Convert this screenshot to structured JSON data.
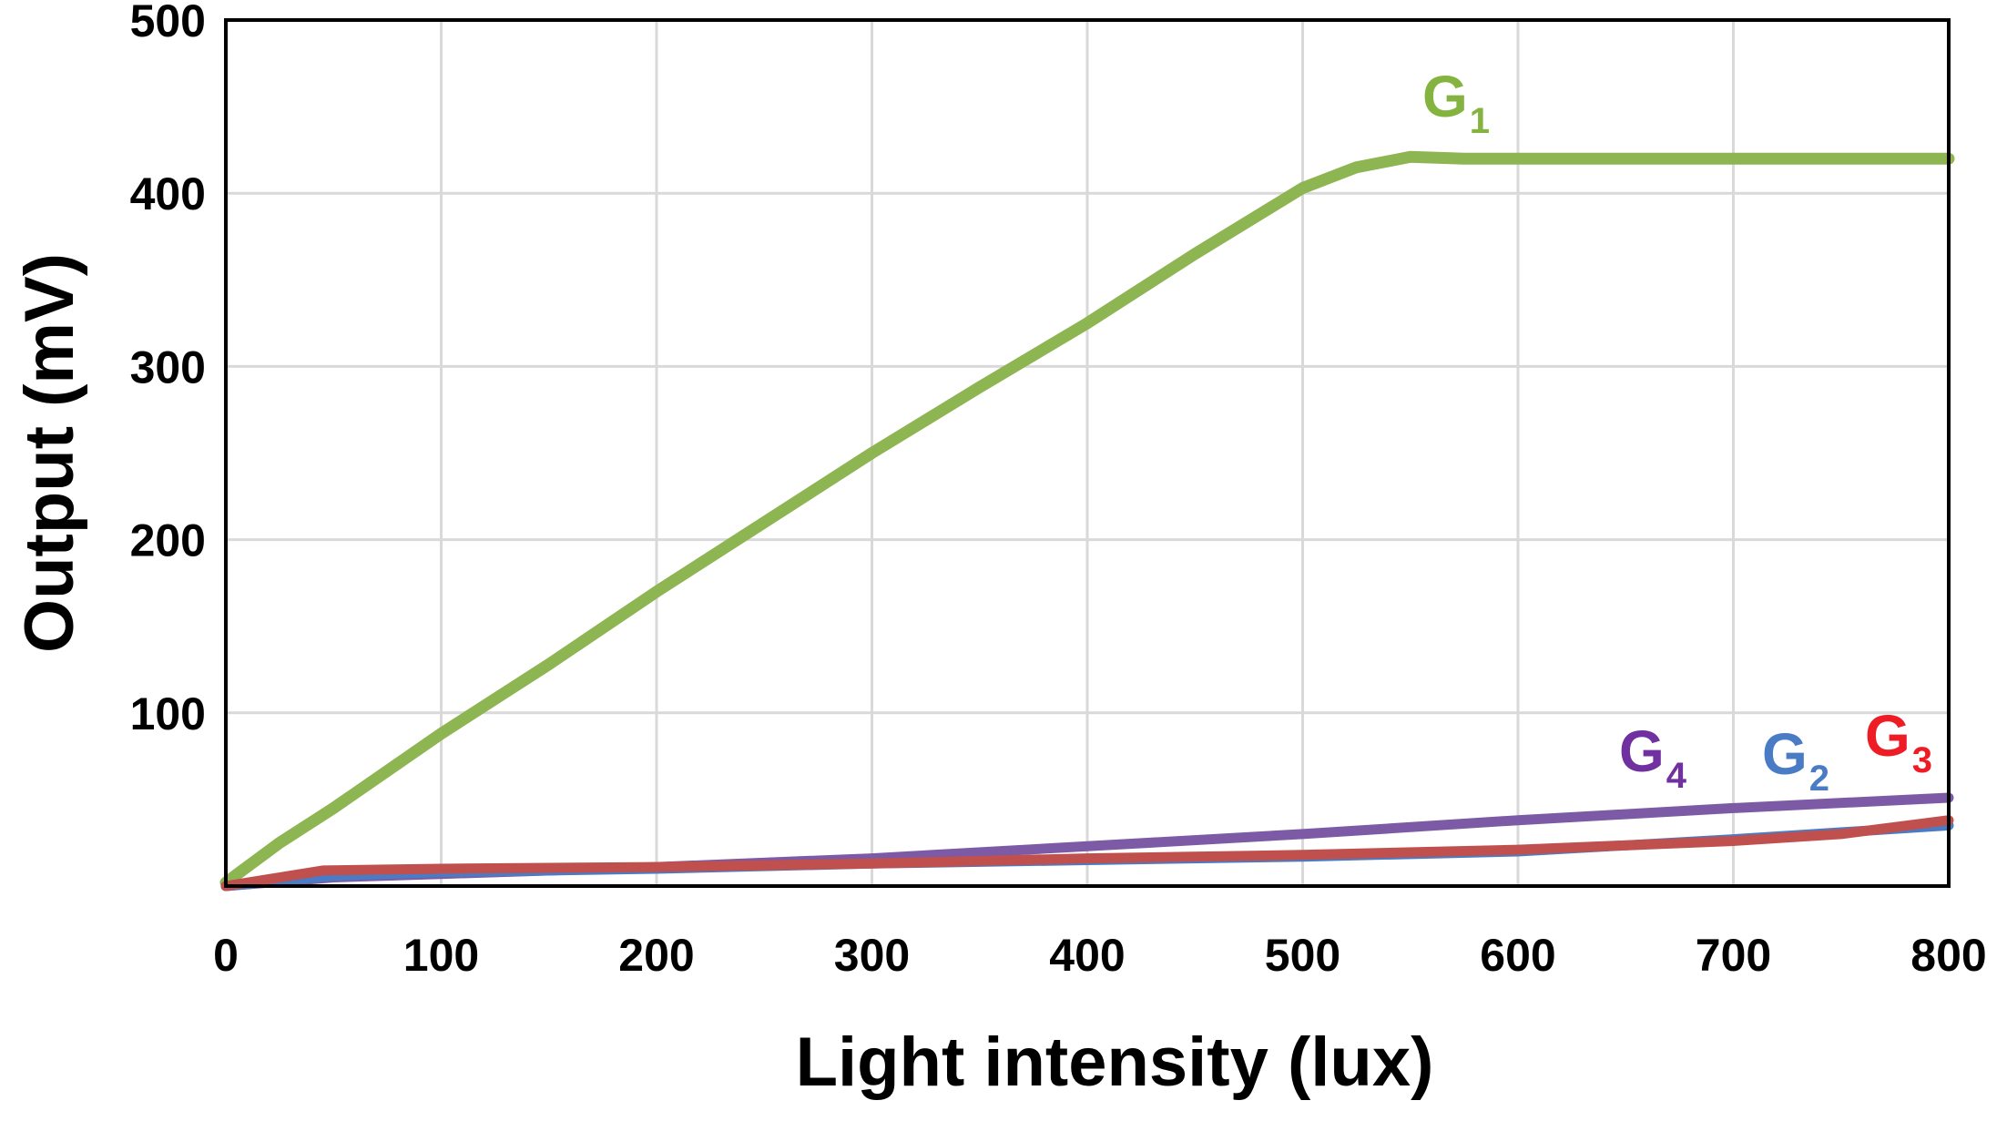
{
  "chart_data": {
    "type": "line",
    "xlabel": "Light intensity (lux)",
    "ylabel": "Output (mV)",
    "xlim": [
      0,
      800
    ],
    "ylim": [
      0,
      500
    ],
    "x_ticks": [
      "0",
      "100",
      "200",
      "300",
      "400",
      "500",
      "600",
      "700",
      "800"
    ],
    "y_ticks": [
      "100",
      "200",
      "300",
      "400",
      "500"
    ],
    "grid": true,
    "series": [
      {
        "name": "G",
        "subscript": "1",
        "color": "#8db552",
        "x": [
          0,
          25,
          50,
          100,
          150,
          200,
          250,
          300,
          350,
          400,
          450,
          500,
          525,
          550,
          575,
          600,
          700,
          800
        ],
        "y": [
          2,
          25,
          45,
          88,
          128,
          170,
          210,
          250,
          288,
          325,
          365,
          403,
          415,
          421,
          420,
          420,
          420,
          420
        ]
      },
      {
        "name": "G",
        "subscript": "4",
        "color": "#7d5aa5",
        "x": [
          0,
          50,
          100,
          200,
          300,
          400,
          500,
          600,
          700,
          800
        ],
        "y": [
          0,
          5,
          7,
          11,
          16,
          23,
          30,
          38,
          45,
          51
        ]
      },
      {
        "name": "G",
        "subscript": "2",
        "color": "#4a7bc5",
        "x": [
          0,
          50,
          100,
          200,
          300,
          400,
          500,
          600,
          700,
          800
        ],
        "y": [
          0,
          6,
          8,
          10,
          13,
          15,
          17,
          20,
          27,
          35
        ]
      },
      {
        "name": "G",
        "subscript": "3",
        "color": "#c0504d",
        "x": [
          0,
          45,
          100,
          200,
          300,
          400,
          500,
          600,
          700,
          750,
          800
        ],
        "y": [
          0,
          9,
          10,
          11,
          13,
          16,
          18,
          21,
          26,
          30,
          38
        ]
      }
    ],
    "label_colors": {
      "G1": "#85b340",
      "G4": "#7030a0",
      "G2": "#4a7bc5",
      "G3": "#ee1c25"
    }
  }
}
